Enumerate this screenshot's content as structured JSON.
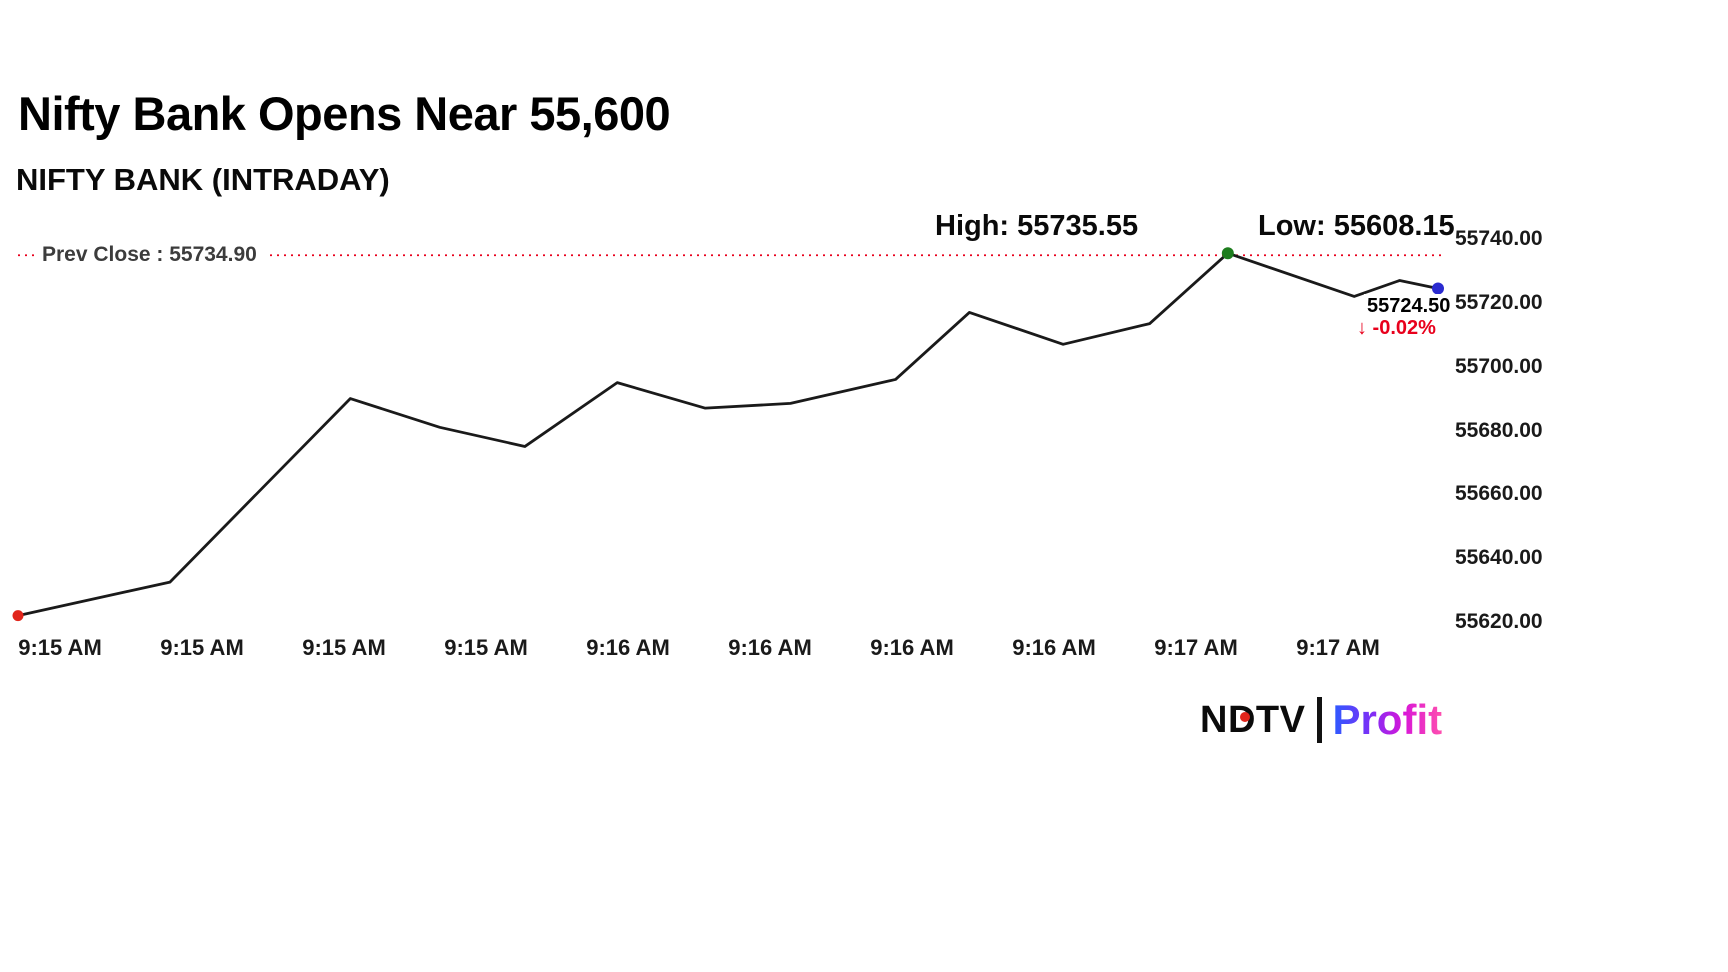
{
  "page": {
    "title": "Nifty Bank Opens Near 55,600",
    "subtitle": "NIFTY BANK (INTRADAY)"
  },
  "chart_data": {
    "type": "line",
    "title": "NIFTY BANK (INTRADAY)",
    "grid": false,
    "legend_position": "none",
    "ylim": [
      55620,
      55740
    ],
    "prev_close_value": 55734.9,
    "annotations": {
      "high": "High: 55735.55",
      "low": "Low: 55608.15",
      "prev_close": "Prev Close : 55734.90",
      "last_price": "55724.50",
      "change": "↓ -0.02%"
    },
    "y_ticks": [
      "55740.00",
      "55720.00",
      "55700.00",
      "55680.00",
      "55660.00",
      "55640.00",
      "55620.00"
    ],
    "x_ticks": [
      "9:15 AM",
      "9:15 AM",
      "9:15 AM",
      "9:15 AM",
      "9:16 AM",
      "9:16 AM",
      "9:16 AM",
      "9:16 AM",
      "9:17 AM",
      "9:17 AM"
    ],
    "series": [
      {
        "name": "NIFTY BANK",
        "points": [
          [
            0.0,
            55622.0
          ],
          [
            0.107,
            55632.5
          ],
          [
            0.234,
            55690.0
          ],
          [
            0.297,
            55681.0
          ],
          [
            0.357,
            55675.0
          ],
          [
            0.422,
            55695.0
          ],
          [
            0.484,
            55687.0
          ],
          [
            0.544,
            55688.5
          ],
          [
            0.618,
            55696.0
          ],
          [
            0.67,
            55717.0
          ],
          [
            0.736,
            55707.0
          ],
          [
            0.797,
            55713.5
          ],
          [
            0.852,
            55735.55
          ],
          [
            0.941,
            55722.0
          ],
          [
            0.973,
            55727.0
          ],
          [
            1.0,
            55724.5
          ]
        ]
      }
    ],
    "colors": {
      "line": "#1a1a1a",
      "prev_close_line": "#e8001c",
      "start_dot": "#e1251b",
      "high_dot": "#1e7d1e",
      "end_dot": "#2b2bd0",
      "change_text": "#e8001c"
    }
  },
  "branding": {
    "ndtv": "NDTV",
    "profit": "Profit"
  }
}
